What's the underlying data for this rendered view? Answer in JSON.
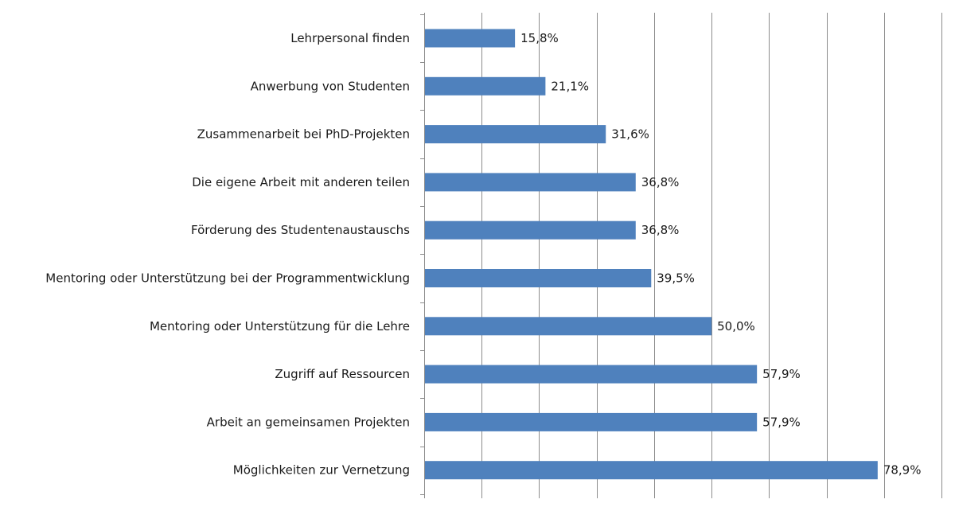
{
  "chart_data": {
    "type": "bar",
    "orientation": "horizontal",
    "title": "",
    "xlabel": "",
    "ylabel": "",
    "categories": [
      "Lehrpersonal finden",
      "Anwerbung von Studenten",
      "Zusammenarbeit bei PhD-Projekten",
      "Die eigene Arbeit mit anderen teilen",
      "Förderung des Studentenaustauschs",
      "Mentoring oder Unterstützung bei der Programmentwicklung",
      "Mentoring oder Unterstützung für die Lehre",
      "Zugriff auf Ressourcen",
      "Arbeit an gemeinsamen Projekten",
      "Möglichkeiten zur Vernetzung"
    ],
    "values": [
      15.8,
      21.1,
      31.6,
      36.8,
      36.8,
      39.5,
      50.0,
      57.9,
      57.9,
      78.9
    ],
    "value_labels": [
      "15,8%",
      "21,1%",
      "31,6%",
      "36,8%",
      "36,8%",
      "39,5%",
      "50,0%",
      "57,9%",
      "57,9%",
      "78,9%"
    ],
    "xlim": [
      0,
      90
    ],
    "x_tick_step": 10,
    "x_tick_labels_shown": false,
    "grid": true,
    "legend": "none",
    "bar_color": "#4F81BD"
  }
}
